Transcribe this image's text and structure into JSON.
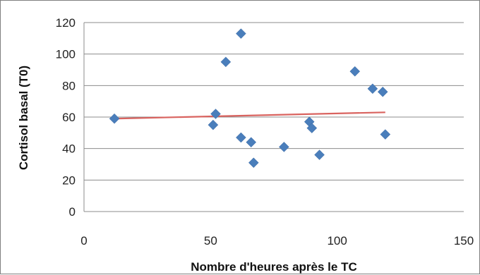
{
  "chart_data": {
    "type": "scatter",
    "title": "",
    "xlabel": "Nombre d'heures après le TC",
    "ylabel": "Cortisol basal (T0)",
    "xlim": [
      0,
      150
    ],
    "ylim": [
      0,
      120
    ],
    "x_ticks": [
      "0",
      "50",
      "100",
      "150"
    ],
    "y_ticks": [
      "0",
      "20",
      "40",
      "60",
      "80",
      "100",
      "120"
    ],
    "grid": "horizontal",
    "legend": "none",
    "marker": "diamond",
    "colors": {
      "points": "#4a7ebb",
      "trendline": "#d9635f",
      "grid": "#8c8c8c",
      "axis": "#8c8c8c"
    },
    "series": [
      {
        "x": [
          12,
          51,
          52,
          56,
          62,
          62,
          66,
          67,
          79,
          89,
          90,
          93,
          107,
          114,
          118,
          119
        ],
        "y": [
          59,
          55,
          62,
          95,
          113,
          47,
          44,
          31,
          41,
          57,
          53,
          36,
          89,
          78,
          76,
          49
        ]
      }
    ],
    "trendline": {
      "type": "linear",
      "x": [
        12,
        119
      ],
      "y": [
        59,
        63
      ]
    }
  }
}
